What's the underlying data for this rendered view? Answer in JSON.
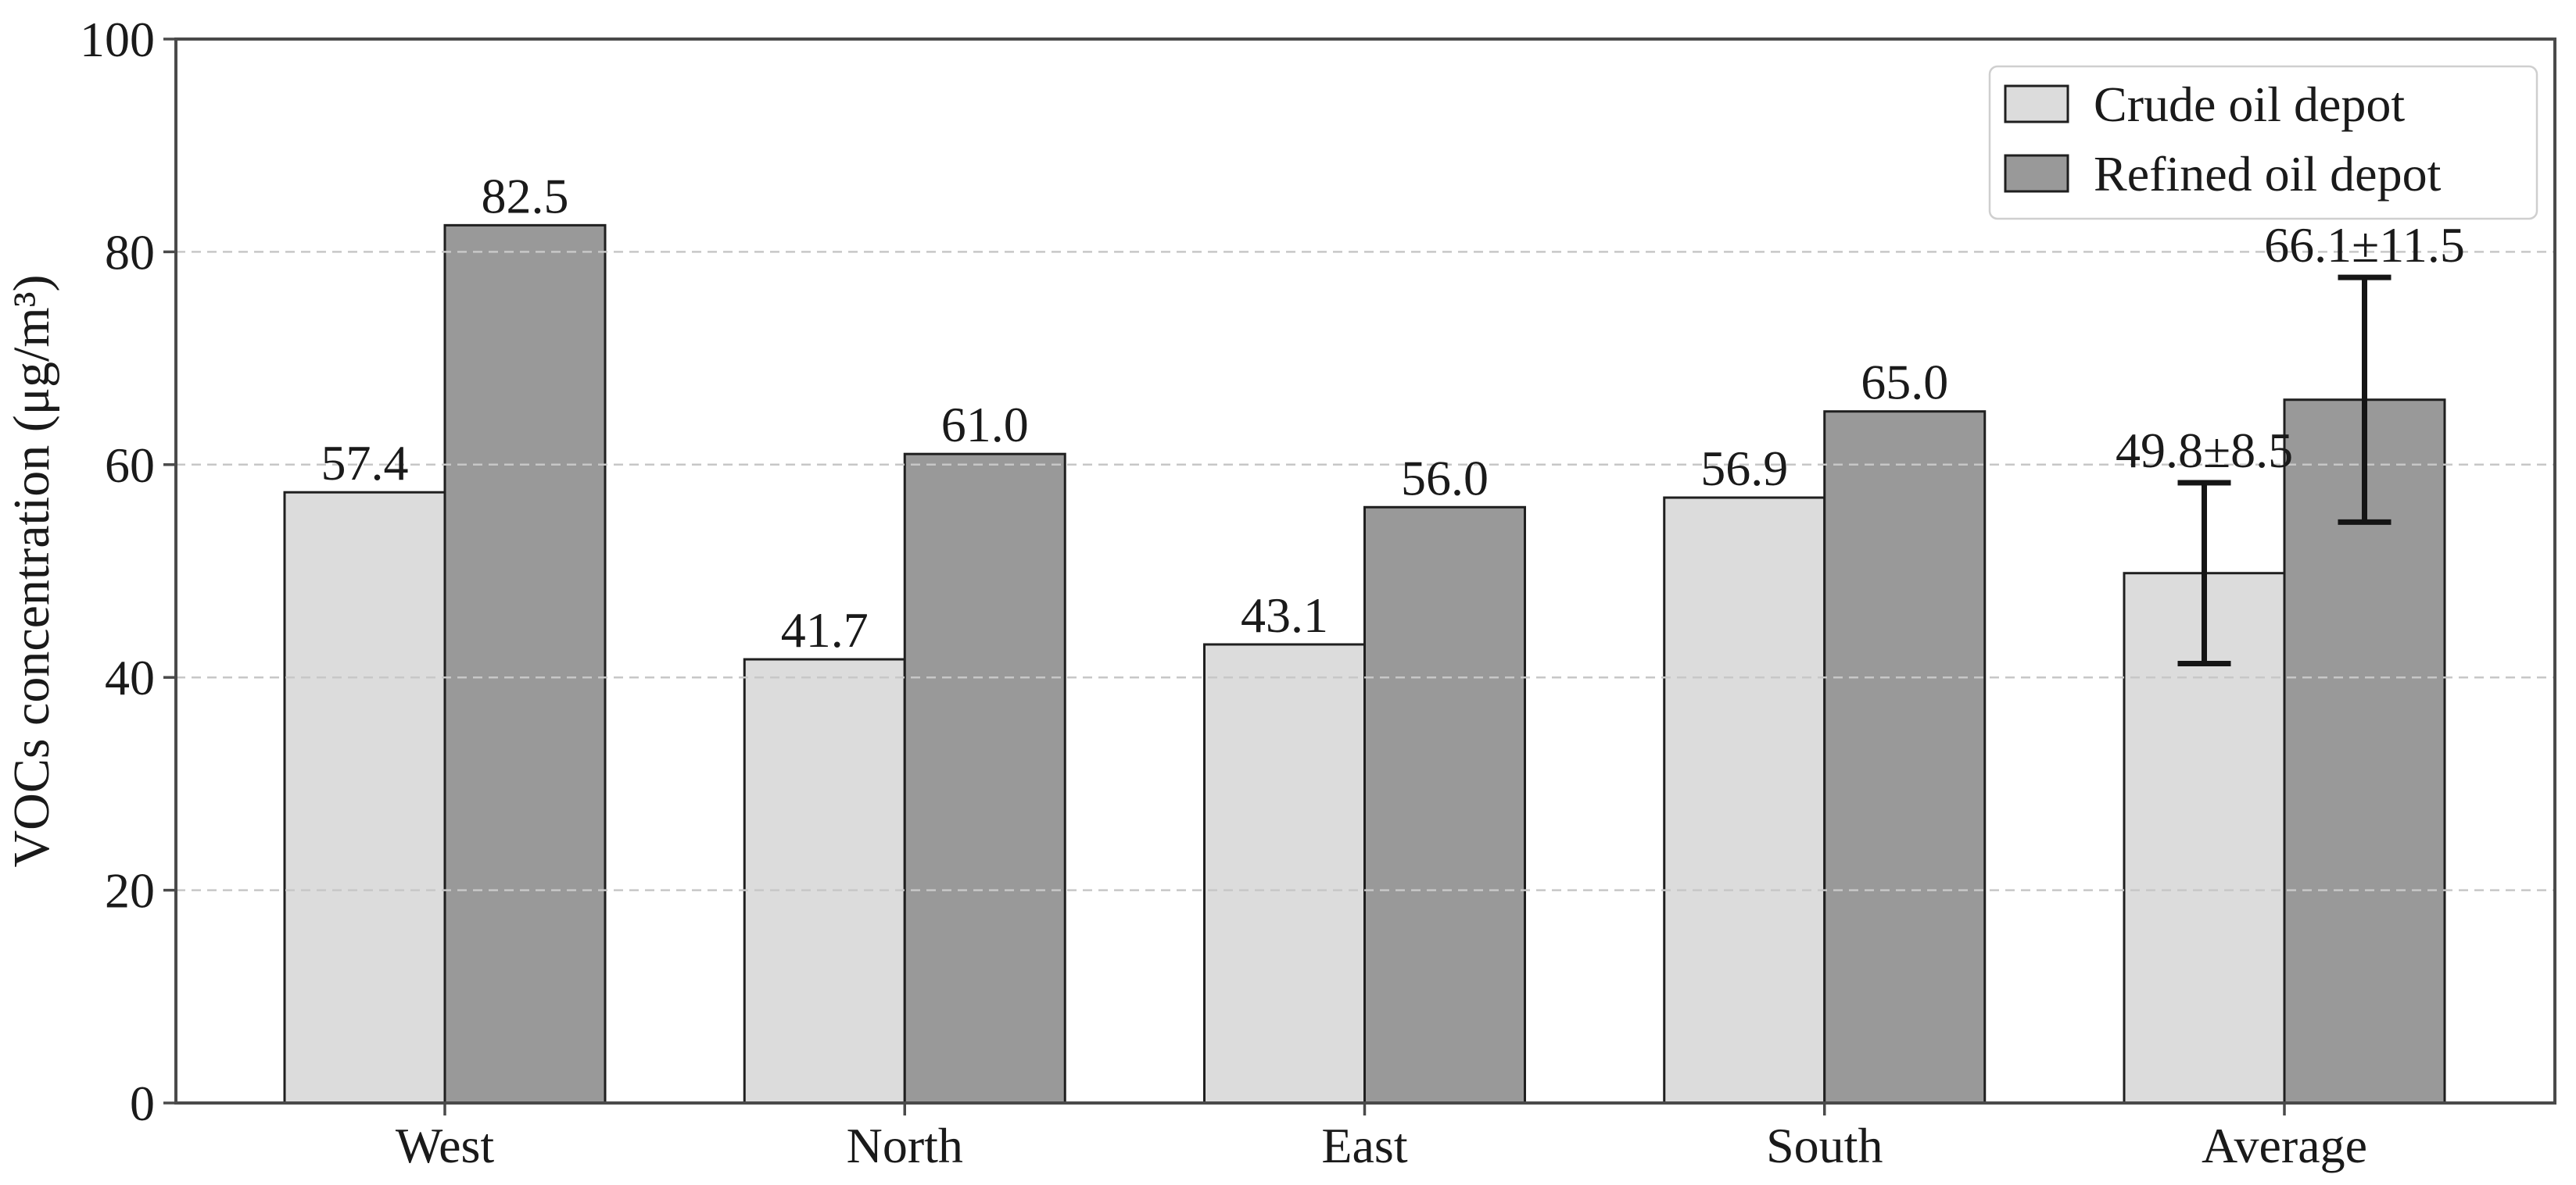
{
  "figure": {
    "background": "#ffffff"
  },
  "chart_data": {
    "type": "bar",
    "title": "",
    "categories": [
      "West",
      "North",
      "East",
      "South",
      "Average"
    ],
    "series": [
      {
        "name": "Crude oil depot",
        "fill": "#dcdcdc",
        "values": [
          57.4,
          41.7,
          43.1,
          56.9,
          49.8
        ],
        "value_labels": [
          "57.4",
          "41.7",
          "43.1",
          "56.9",
          "49.8±8.5"
        ],
        "errors": [
          null,
          null,
          null,
          null,
          8.5
        ]
      },
      {
        "name": "Refined oil depot",
        "fill": "#999999",
        "values": [
          82.5,
          61.0,
          56.0,
          65.0,
          66.1
        ],
        "value_labels": [
          "82.5",
          "61.0",
          "56.0",
          "65.0",
          "66.1±11.5"
        ],
        "errors": [
          null,
          null,
          null,
          null,
          11.5
        ]
      }
    ],
    "xlabel": "",
    "ylabel": "VOCs concentration (μg/m³)",
    "ylim": [
      0,
      100
    ],
    "yticks": [
      "0",
      "20",
      "40",
      "60",
      "80",
      "100"
    ],
    "ytick_values": [
      0,
      20,
      40,
      60,
      80,
      100
    ],
    "gridlines_at": [
      20,
      40,
      60,
      80
    ],
    "grid_style": "dashed",
    "grid_on_top_of_bars": true,
    "legend": {
      "position": "upper-right",
      "entries": [
        "Crude oil depot",
        "Refined oil depot"
      ]
    },
    "colors": {
      "bar_edge": "#1f1f1f",
      "frame": "#4a4a4a",
      "text": "#1a1a1a",
      "grid": "#c7c7c7",
      "error_bar": "#151515",
      "legend_border": "#cfcfcf",
      "legend_fill": "#ffffff"
    }
  }
}
